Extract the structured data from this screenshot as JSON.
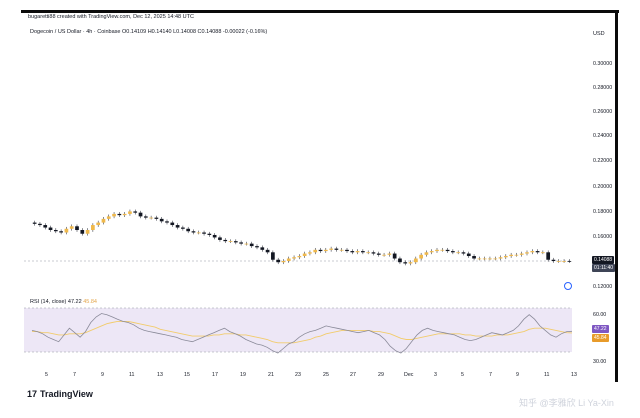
{
  "header": "bugaretti88 created with TradingView.com, Dec 12, 2025 14:48 UTC",
  "legend": "Dogecoin / US Dollar · 4h · Coinbase  O0.14109  H0.14140  L0.14008  C0.14088  -0.00022 (-0.16%)",
  "currency": "USD",
  "rsi_label_main": "RSI (14, close)",
  "rsi_label_value": "47.22",
  "rsi_label_ma": "45.84",
  "price_axis_ticks": [
    "0.30000",
    "0.28000",
    "0.26000",
    "0.24000",
    "0.22000",
    "0.20000",
    "0.18000",
    "0.16000",
    "0.12000"
  ],
  "price_tag": "0.14088",
  "time_tag": "01:11:40",
  "rsi_axis_ticks": [
    "60.00",
    "30.00"
  ],
  "rsi_tag_value": "47.22",
  "rsi_tag_ma": "45.84",
  "x_labels": [
    "5",
    "7",
    "9",
    "11",
    "13",
    "15",
    "17",
    "19",
    "21",
    "23",
    "25",
    "27",
    "29",
    "Dec",
    "3",
    "5",
    "7",
    "9",
    "11",
    "13"
  ],
  "brand": "TradingView",
  "brand_mark": "17",
  "watermark": "知乎 @李雅欣 Li Ya-Xin",
  "colors": {
    "up": "#f0b94b",
    "down": "#131722",
    "rsi": "#8a8a99",
    "rsi_ma": "#f2cc6c",
    "rsi_band": "#ede7f6"
  },
  "chart_data": {
    "type": "candlestick",
    "title": "Dogecoin / US Dollar · 4h · Coinbase",
    "y_range": [
      0.12,
      0.31
    ],
    "close_series": [
      0.171,
      0.17,
      0.168,
      0.166,
      0.165,
      0.164,
      0.167,
      0.169,
      0.166,
      0.163,
      0.166,
      0.17,
      0.172,
      0.175,
      0.177,
      0.179,
      0.178,
      0.179,
      0.181,
      0.18,
      0.177,
      0.176,
      0.176,
      0.175,
      0.173,
      0.172,
      0.17,
      0.168,
      0.167,
      0.165,
      0.164,
      0.164,
      0.163,
      0.162,
      0.16,
      0.158,
      0.157,
      0.157,
      0.156,
      0.155,
      0.155,
      0.153,
      0.152,
      0.15,
      0.148,
      0.142,
      0.14,
      0.141,
      0.143,
      0.144,
      0.145,
      0.147,
      0.148,
      0.15,
      0.149,
      0.15,
      0.151,
      0.15,
      0.15,
      0.149,
      0.148,
      0.149,
      0.148,
      0.148,
      0.147,
      0.146,
      0.146,
      0.147,
      0.143,
      0.14,
      0.139,
      0.14,
      0.143,
      0.146,
      0.148,
      0.149,
      0.15,
      0.15,
      0.149,
      0.148,
      0.148,
      0.147,
      0.145,
      0.143,
      0.143,
      0.143,
      0.143,
      0.143,
      0.144,
      0.145,
      0.146,
      0.146,
      0.147,
      0.148,
      0.149,
      0.148,
      0.148,
      0.142,
      0.141,
      0.141,
      0.141,
      0.1409
    ],
    "rsi": [
      48,
      47,
      45,
      42,
      40,
      38,
      44,
      50,
      46,
      42,
      47,
      55,
      60,
      63,
      62,
      60,
      58,
      56,
      55,
      53,
      50,
      48,
      47,
      46,
      45,
      44,
      43,
      42,
      40,
      39,
      38,
      40,
      42,
      44,
      46,
      48,
      50,
      47,
      45,
      43,
      40,
      38,
      36,
      35,
      33,
      30,
      28,
      32,
      36,
      38,
      42,
      45,
      47,
      48,
      50,
      52,
      51,
      50,
      49,
      48,
      47,
      46,
      47,
      48,
      46,
      44,
      40,
      34,
      30,
      28,
      32,
      38,
      44,
      48,
      50,
      48,
      47,
      46,
      45,
      44,
      42,
      40,
      39,
      40,
      42,
      44,
      46,
      45,
      44,
      46,
      48,
      52,
      58,
      62,
      58,
      52,
      48,
      44,
      42,
      45,
      47,
      47.22
    ],
    "rsi_ma": [
      47,
      47,
      46,
      46,
      45,
      44,
      44,
      45,
      45,
      45,
      46,
      48,
      50,
      52,
      54,
      55,
      56,
      56,
      56,
      55,
      54,
      53,
      52,
      51,
      49,
      48,
      47,
      46,
      45,
      44,
      43,
      43,
      43,
      43,
      44,
      44,
      45,
      45,
      45,
      44,
      44,
      43,
      42,
      41,
      40,
      38,
      37,
      37,
      37,
      37,
      38,
      39,
      40,
      42,
      43,
      45,
      46,
      47,
      48,
      48,
      48,
      48,
      48,
      48,
      47,
      47,
      46,
      45,
      43,
      41,
      40,
      40,
      41,
      42,
      43,
      44,
      45,
      45,
      45,
      45,
      45,
      44,
      44,
      43,
      43,
      43,
      43,
      44,
      44,
      44,
      45,
      46,
      47,
      49,
      50,
      50,
      50,
      49,
      48,
      47,
      46,
      45.84
    ],
    "rsi_range": [
      20,
      75
    ]
  }
}
